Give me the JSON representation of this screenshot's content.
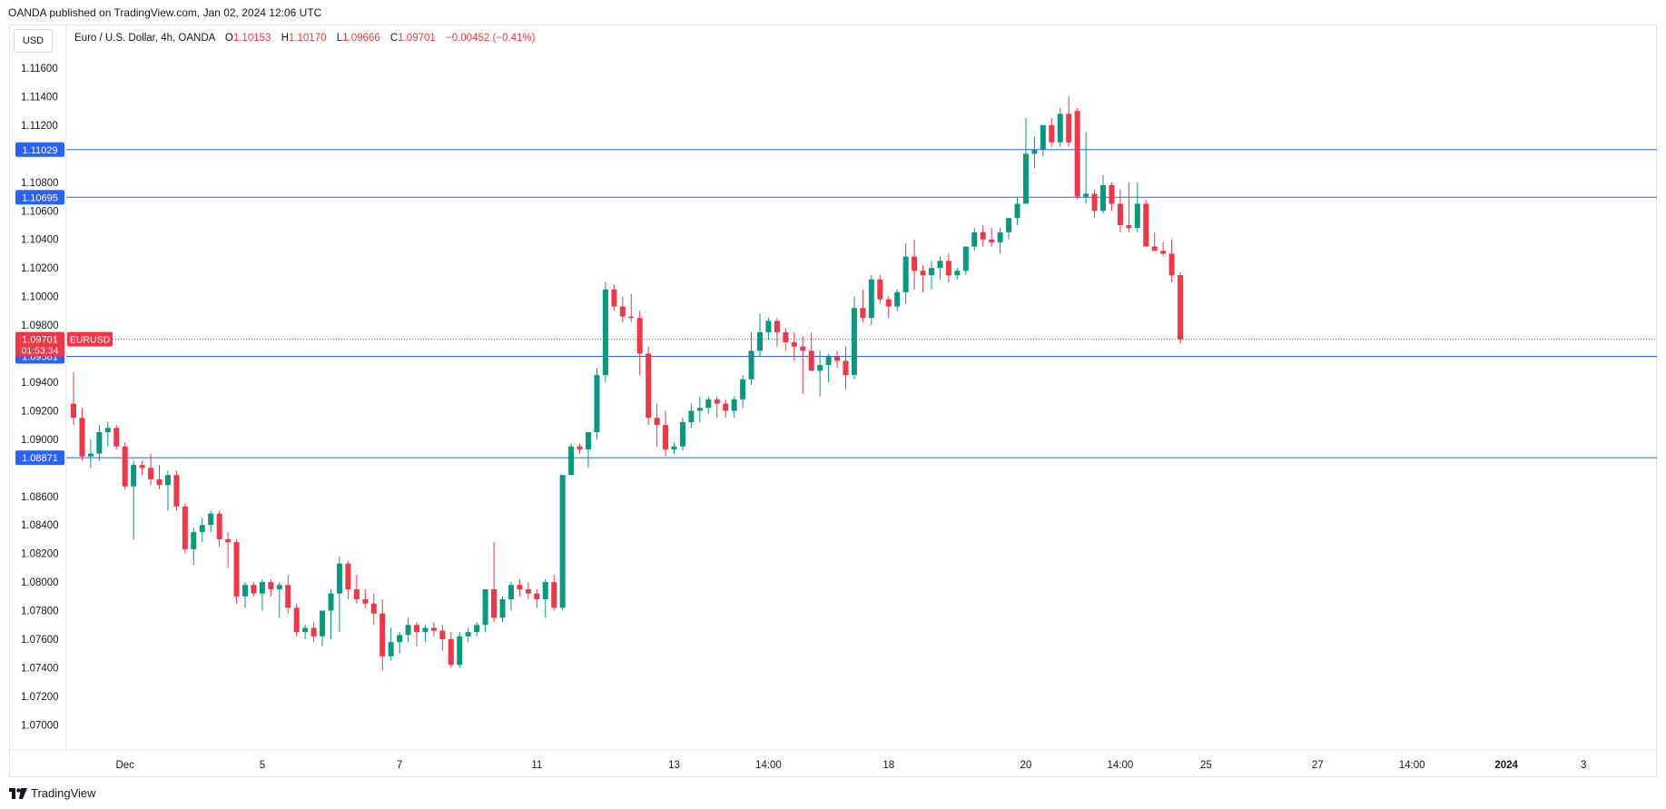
{
  "publisher_line": "OANDA published on TradingView.com, Jan 02, 2024 12:06 UTC",
  "currency_button": "USD",
  "legend": {
    "symbol": "Euro / U.S. Dollar, 4h, OANDA",
    "open_label": "O",
    "open": "1.10153",
    "high_label": "H",
    "high": "1.10170",
    "low_label": "L",
    "low": "1.09666",
    "close_label": "C",
    "close": "1.09701",
    "change": "−0.00452 (−0.41%)"
  },
  "footer": {
    "brand": "TradingView"
  },
  "colors": {
    "up": "#089981",
    "down": "#f23645",
    "level": "#2962ff",
    "price": "#f23645"
  },
  "chart_data": {
    "type": "candlestick",
    "ylim": [
      1.0685,
      1.1175
    ],
    "y_ticks": [
      "1.11600",
      "1.11400",
      "1.11200",
      "1.10800",
      "1.10600",
      "1.10400",
      "1.10200",
      "1.10000",
      "1.09800",
      "1.09400",
      "1.09200",
      "1.09000",
      "1.08600",
      "1.08400",
      "1.08200",
      "1.08000",
      "1.07800",
      "1.07600",
      "1.07400",
      "1.07200",
      "1.07000"
    ],
    "x_ticks": [
      {
        "label": "Dec",
        "i": 6
      },
      {
        "label": "5",
        "i": 22
      },
      {
        "label": "7",
        "i": 38
      },
      {
        "label": "11",
        "i": 54
      },
      {
        "label": "13",
        "i": 70
      },
      {
        "label": "14:00",
        "i": 81
      },
      {
        "label": "18",
        "i": 95
      },
      {
        "label": "20",
        "i": 111
      },
      {
        "label": "14:00",
        "i": 122
      },
      {
        "label": "25",
        "i": 132
      },
      {
        "label": "27",
        "i": 145
      },
      {
        "label": "14:00",
        "i": 156
      },
      {
        "label": "2024",
        "i": 167,
        "bold": true
      },
      {
        "label": "3",
        "i": 176
      }
    ],
    "levels": [
      {
        "value": 1.11029,
        "label": "1.11029"
      },
      {
        "value": 1.10695,
        "label": "1.10695"
      },
      {
        "value": 1.09581,
        "label": "1.09581"
      },
      {
        "value": 1.08871,
        "label": "1.08871"
      }
    ],
    "last_price": {
      "value": 1.09701,
      "label": "1.09701",
      "countdown": "01:53:34",
      "ticker": "EURUSD"
    },
    "candles": [
      [
        1.0925,
        1.0947,
        1.091,
        1.0915
      ],
      [
        1.0915,
        1.0922,
        1.0885,
        1.0888
      ],
      [
        1.0888,
        1.09,
        1.088,
        1.089
      ],
      [
        1.089,
        1.091,
        1.0885,
        1.0905
      ],
      [
        1.0905,
        1.0912,
        1.0895,
        1.0908
      ],
      [
        1.0908,
        1.091,
        1.0893,
        1.0895
      ],
      [
        1.0895,
        1.0898,
        1.0865,
        1.0867
      ],
      [
        1.0867,
        1.0885,
        1.083,
        1.0882
      ],
      [
        1.0882,
        1.0885,
        1.0875,
        1.088
      ],
      [
        1.088,
        1.089,
        1.0868,
        1.0872
      ],
      [
        1.0872,
        1.0882,
        1.0865,
        1.0868
      ],
      [
        1.0868,
        1.0878,
        1.085,
        1.0875
      ],
      [
        1.0875,
        1.0878,
        1.085,
        1.0853
      ],
      [
        1.0853,
        1.0855,
        1.082,
        1.0823
      ],
      [
        1.0823,
        1.0838,
        1.0812,
        1.0835
      ],
      [
        1.0835,
        1.0845,
        1.0828,
        1.084
      ],
      [
        1.084,
        1.085,
        1.0835,
        1.0848
      ],
      [
        1.0848,
        1.085,
        1.0825,
        1.083
      ],
      [
        1.083,
        1.0835,
        1.081,
        1.0828
      ],
      [
        1.0828,
        1.083,
        1.0785,
        1.079
      ],
      [
        1.079,
        1.08,
        1.0782,
        1.0798
      ],
      [
        1.0798,
        1.08,
        1.079,
        1.0792
      ],
      [
        1.0792,
        1.0802,
        1.078,
        1.08
      ],
      [
        1.08,
        1.0802,
        1.079,
        1.0795
      ],
      [
        1.0795,
        1.08,
        1.0775,
        1.0798
      ],
      [
        1.0798,
        1.0805,
        1.0778,
        1.0782
      ],
      [
        1.0782,
        1.0785,
        1.0762,
        1.0765
      ],
      [
        1.0765,
        1.077,
        1.076,
        1.0768
      ],
      [
        1.0768,
        1.0772,
        1.0758,
        1.0762
      ],
      [
        1.0762,
        1.078,
        1.0755,
        1.078
      ],
      [
        1.078,
        1.0795,
        1.076,
        1.0792
      ],
      [
        1.0792,
        1.0818,
        1.0765,
        1.0813
      ],
      [
        1.0813,
        1.0815,
        1.0788,
        1.0795
      ],
      [
        1.0795,
        1.0805,
        1.0785,
        1.0788
      ],
      [
        1.0788,
        1.0795,
        1.0782,
        1.0785
      ],
      [
        1.0785,
        1.0792,
        1.077,
        1.0778
      ],
      [
        1.0778,
        1.0788,
        1.0738,
        1.0748
      ],
      [
        1.0748,
        1.0768,
        1.0745,
        1.0758
      ],
      [
        1.0758,
        1.0765,
        1.075,
        1.0763
      ],
      [
        1.0763,
        1.0775,
        1.0758,
        1.077
      ],
      [
        1.077,
        1.0772,
        1.0755,
        1.0765
      ],
      [
        1.0765,
        1.077,
        1.0758,
        1.0768
      ],
      [
        1.0768,
        1.0772,
        1.0762,
        1.0766
      ],
      [
        1.0766,
        1.077,
        1.0752,
        1.076
      ],
      [
        1.076,
        1.0765,
        1.074,
        1.0742
      ],
      [
        1.0742,
        1.0765,
        1.074,
        1.0762
      ],
      [
        1.0762,
        1.0768,
        1.0758,
        1.0765
      ],
      [
        1.0765,
        1.0772,
        1.0762,
        1.077
      ],
      [
        1.077,
        1.0795,
        1.0765,
        1.0795
      ],
      [
        1.0795,
        1.0828,
        1.0772,
        1.0775
      ],
      [
        1.0775,
        1.079,
        1.0772,
        1.0788
      ],
      [
        1.0788,
        1.08,
        1.078,
        1.0798
      ],
      [
        1.0798,
        1.0802,
        1.079,
        1.0795
      ],
      [
        1.0795,
        1.08,
        1.0788,
        1.0792
      ],
      [
        1.0792,
        1.0795,
        1.0782,
        1.0788
      ],
      [
        1.0788,
        1.0802,
        1.0775,
        1.08
      ],
      [
        1.08,
        1.0805,
        1.078,
        1.0782
      ],
      [
        1.0782,
        1.0875,
        1.078,
        1.0875
      ],
      [
        1.0875,
        1.0897,
        1.0875,
        1.0895
      ],
      [
        1.0895,
        1.0897,
        1.089,
        1.0893
      ],
      [
        1.0893,
        1.0905,
        1.088,
        1.0905
      ],
      [
        1.0905,
        1.095,
        1.09,
        1.0945
      ],
      [
        1.0945,
        1.101,
        1.094,
        1.1005
      ],
      [
        1.1005,
        1.1008,
        1.099,
        1.0993
      ],
      [
        1.0993,
        1.1,
        1.0982,
        1.0986
      ],
      [
        1.0986,
        1.1002,
        1.0982,
        1.0985
      ],
      [
        1.0985,
        1.099,
        1.0945,
        1.096
      ],
      [
        1.096,
        1.0965,
        1.091,
        1.0915
      ],
      [
        1.0915,
        1.0925,
        1.0895,
        1.091
      ],
      [
        1.091,
        1.092,
        1.0888,
        1.0893
      ],
      [
        1.0893,
        1.0898,
        1.089,
        1.0895
      ],
      [
        1.0895,
        1.0915,
        1.0892,
        1.0912
      ],
      [
        1.0912,
        1.0925,
        1.0908,
        1.092
      ],
      [
        1.092,
        1.093,
        1.0912,
        1.0922
      ],
      [
        1.0922,
        1.093,
        1.0918,
        1.0928
      ],
      [
        1.0928,
        1.093,
        1.0915,
        1.0925
      ],
      [
        1.0925,
        1.0928,
        1.0915,
        1.092
      ],
      [
        1.092,
        1.093,
        1.0915,
        1.0928
      ],
      [
        1.0928,
        1.0945,
        1.0922,
        1.0942
      ],
      [
        1.0942,
        1.0975,
        1.0938,
        1.0962
      ],
      [
        1.0962,
        1.0988,
        1.0958,
        1.0975
      ],
      [
        1.0975,
        1.0985,
        1.097,
        1.0983
      ],
      [
        1.0983,
        1.0985,
        1.0965,
        1.0975
      ],
      [
        1.0975,
        1.0978,
        1.0962,
        1.0968
      ],
      [
        1.0968,
        1.0975,
        1.0955,
        1.0965
      ],
      [
        1.0965,
        1.0972,
        1.0932,
        1.0962
      ],
      [
        1.0962,
        1.0975,
        1.095,
        1.0948
      ],
      [
        1.0948,
        1.0962,
        1.093,
        1.0952
      ],
      [
        1.0952,
        1.096,
        1.094,
        1.0958
      ],
      [
        1.0958,
        1.0962,
        1.095,
        1.0955
      ],
      [
        1.0955,
        1.0965,
        1.0935,
        1.0945
      ],
      [
        1.0945,
        1.1,
        1.0942,
        1.0992
      ],
      [
        1.0992,
        1.1005,
        1.0982,
        1.0985
      ],
      [
        1.0985,
        1.1015,
        1.098,
        1.1012
      ],
      [
        1.1012,
        1.1015,
        1.0995,
        1.0998
      ],
      [
        1.0998,
        1.1,
        1.0985,
        1.0993
      ],
      [
        1.0993,
        1.1005,
        1.099,
        1.1003
      ],
      [
        1.1003,
        1.1037,
        1.0995,
        1.1028
      ],
      [
        1.1028,
        1.104,
        1.1005,
        1.1018
      ],
      [
        1.1018,
        1.1022,
        1.1003,
        1.1015
      ],
      [
        1.1015,
        1.1025,
        1.1005,
        1.102
      ],
      [
        1.102,
        1.1028,
        1.1012,
        1.1025
      ],
      [
        1.1025,
        1.103,
        1.101,
        1.1015
      ],
      [
        1.1015,
        1.102,
        1.1012,
        1.1018
      ],
      [
        1.1018,
        1.1035,
        1.1015,
        1.1035
      ],
      [
        1.1035,
        1.1048,
        1.1032,
        1.1045
      ],
      [
        1.1045,
        1.105,
        1.1035,
        1.104
      ],
      [
        1.104,
        1.1048,
        1.1035,
        1.1038
      ],
      [
        1.1038,
        1.1048,
        1.103,
        1.1045
      ],
      [
        1.1045,
        1.1055,
        1.104,
        1.1055
      ],
      [
        1.1055,
        1.107,
        1.105,
        1.1065
      ],
      [
        1.1065,
        1.1125,
        1.1065,
        1.11
      ],
      [
        1.11,
        1.1112,
        1.109,
        1.1103
      ],
      [
        1.1103,
        1.112,
        1.1098,
        1.112
      ],
      [
        1.112,
        1.1125,
        1.1105,
        1.1108
      ],
      [
        1.1108,
        1.1132,
        1.1105,
        1.1128
      ],
      [
        1.1128,
        1.114,
        1.1105,
        1.1108
      ],
      [
        1.113,
        1.1132,
        1.1068,
        1.107
      ],
      [
        1.107,
        1.1115,
        1.1065,
        1.1072
      ],
      [
        1.1072,
        1.1075,
        1.1055,
        1.106
      ],
      [
        1.106,
        1.1085,
        1.1058,
        1.1078
      ],
      [
        1.1078,
        1.108,
        1.106,
        1.1065
      ],
      [
        1.1065,
        1.1075,
        1.1045,
        1.105
      ],
      [
        1.105,
        1.108,
        1.1045,
        1.1048
      ],
      [
        1.1048,
        1.108,
        1.1045,
        1.1065
      ],
      [
        1.1065,
        1.1068,
        1.1035,
        1.1035
      ],
      [
        1.1035,
        1.1045,
        1.1032,
        1.1032
      ],
      [
        1.1032,
        1.1038,
        1.1028,
        1.103
      ],
      [
        1.103,
        1.104,
        1.101,
        1.1015
      ],
      [
        1.1015,
        1.1017,
        1.0967,
        1.097
      ]
    ]
  }
}
